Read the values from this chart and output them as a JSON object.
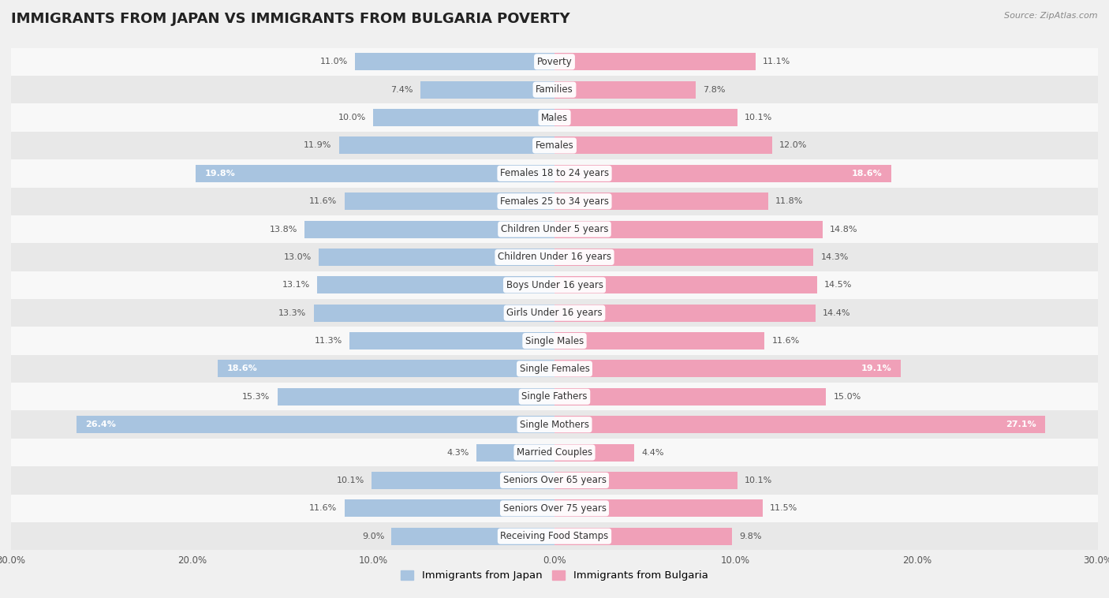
{
  "title": "IMMIGRANTS FROM JAPAN VS IMMIGRANTS FROM BULGARIA POVERTY",
  "source": "Source: ZipAtlas.com",
  "categories": [
    "Poverty",
    "Families",
    "Males",
    "Females",
    "Females 18 to 24 years",
    "Females 25 to 34 years",
    "Children Under 5 years",
    "Children Under 16 years",
    "Boys Under 16 years",
    "Girls Under 16 years",
    "Single Males",
    "Single Females",
    "Single Fathers",
    "Single Mothers",
    "Married Couples",
    "Seniors Over 65 years",
    "Seniors Over 75 years",
    "Receiving Food Stamps"
  ],
  "japan_values": [
    11.0,
    7.4,
    10.0,
    11.9,
    19.8,
    11.6,
    13.8,
    13.0,
    13.1,
    13.3,
    11.3,
    18.6,
    15.3,
    26.4,
    4.3,
    10.1,
    11.6,
    9.0
  ],
  "bulgaria_values": [
    11.1,
    7.8,
    10.1,
    12.0,
    18.6,
    11.8,
    14.8,
    14.3,
    14.5,
    14.4,
    11.6,
    19.1,
    15.0,
    27.1,
    4.4,
    10.1,
    11.5,
    9.8
  ],
  "japan_color": "#a8c4e0",
  "bulgaria_color": "#f0a0b8",
  "japan_label": "Immigrants from Japan",
  "bulgaria_label": "Immigrants from Bulgaria",
  "axis_limit": 30.0,
  "background_color": "#f0f0f0",
  "row_color_even": "#f8f8f8",
  "row_color_odd": "#e8e8e8",
  "title_fontsize": 13,
  "label_fontsize": 8.5,
  "value_fontsize": 8,
  "bar_height": 0.62,
  "threshold_inside": 17.0
}
